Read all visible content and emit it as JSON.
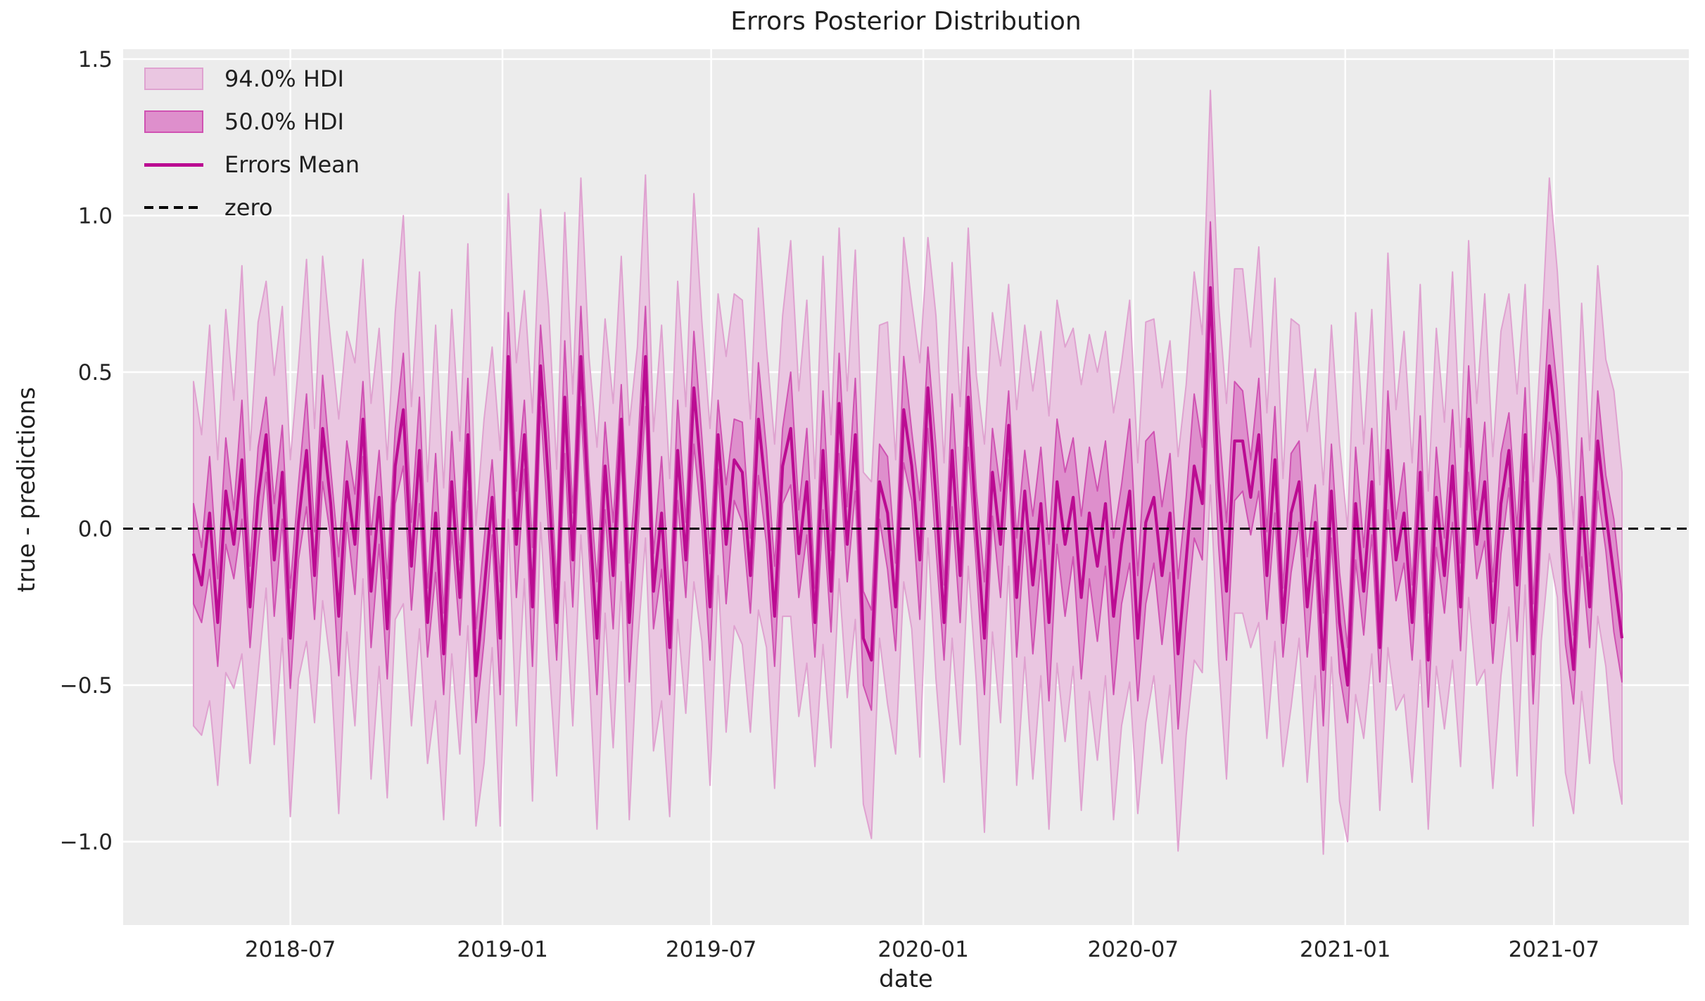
{
  "title": "Errors Posterior Distribution",
  "xlabel": "date",
  "ylabel": "true - predictions",
  "legend": {
    "items": [
      {
        "label": "94.0% HDI",
        "kind": "patch-light"
      },
      {
        "label": "50.0% HDI",
        "kind": "patch-dark"
      },
      {
        "label": "Errors Mean",
        "kind": "line"
      },
      {
        "label": "zero",
        "kind": "dashed-line"
      }
    ]
  },
  "colors": {
    "plot_bg": "#ececec",
    "grid": "#ffffff",
    "band94_fill": "#eac6e1",
    "band94_edge": "#dfa2d0",
    "band50_fill": "#de8fcc",
    "band50_edge": "#cf52b2",
    "mean": "#bb0c92",
    "zero": "#000000",
    "text": "#242424"
  },
  "chart_data": {
    "type": "line",
    "title": "Errors Posterior Distribution",
    "xlabel": "date",
    "ylabel": "true - predictions",
    "legend_position": "upper left",
    "grid": true,
    "x_start_date": "2018-04-08",
    "x_step_days": 7,
    "ylim": [
      -1.27,
      1.53
    ],
    "y_ticks": [
      {
        "value": -1.0,
        "label": "−1.0"
      },
      {
        "value": -0.5,
        "label": "−0.5"
      },
      {
        "value": 0.0,
        "label": "0.0"
      },
      {
        "value": 0.5,
        "label": "0.5"
      },
      {
        "value": 1.0,
        "label": "1.0"
      },
      {
        "value": 1.5,
        "label": "1.5"
      }
    ],
    "x_ticks": [
      {
        "date": "2018-07-01",
        "label": "2018-07"
      },
      {
        "date": "2019-01-01",
        "label": "2019-01"
      },
      {
        "date": "2019-07-01",
        "label": "2019-07"
      },
      {
        "date": "2020-01-01",
        "label": "2020-01"
      },
      {
        "date": "2020-07-01",
        "label": "2020-07"
      },
      {
        "date": "2021-01-01",
        "label": "2021-01"
      },
      {
        "date": "2021-07-01",
        "label": "2021-07"
      }
    ],
    "zero_line": 0.0,
    "mean": [
      -0.08,
      -0.18,
      0.05,
      -0.3,
      0.12,
      -0.05,
      0.22,
      -0.25,
      0.1,
      0.3,
      -0.1,
      0.18,
      -0.35,
      0.02,
      0.25,
      -0.15,
      0.32,
      0.08,
      -0.28,
      0.15,
      -0.05,
      0.35,
      -0.2,
      0.1,
      -0.32,
      0.2,
      0.38,
      -0.12,
      0.25,
      -0.3,
      0.05,
      -0.4,
      0.15,
      -0.22,
      0.3,
      -0.47,
      -0.2,
      0.1,
      -0.35,
      0.55,
      -0.05,
      0.3,
      -0.25,
      0.52,
      0.15,
      -0.3,
      0.42,
      -0.1,
      0.55,
      0.05,
      -0.35,
      0.2,
      -0.15,
      0.35,
      -0.3,
      0.1,
      0.55,
      -0.2,
      0.05,
      -0.38,
      0.25,
      -0.1,
      0.45,
      0.15,
      -0.25,
      0.3,
      -0.05,
      0.22,
      0.18,
      -0.15,
      0.35,
      0.1,
      -0.28,
      0.2,
      0.32,
      -0.08,
      0.15,
      -0.3,
      0.25,
      -0.2,
      0.4,
      -0.05,
      0.3,
      -0.35,
      -0.42,
      0.15,
      0.05,
      -0.25,
      0.38,
      0.2,
      -0.1,
      0.45,
      0.1,
      -0.3,
      0.25,
      -0.15,
      0.42,
      0.0,
      -0.35,
      0.18,
      -0.05,
      0.33,
      -0.22,
      0.12,
      -0.18,
      0.08,
      -0.3,
      0.15,
      -0.05,
      0.1,
      -0.22,
      0.05,
      -0.12,
      0.08,
      -0.28,
      -0.05,
      0.12,
      -0.35,
      0.02,
      0.1,
      -0.15,
      0.05,
      -0.4,
      -0.1,
      0.2,
      0.08,
      0.77,
      0.15,
      -0.2,
      0.28,
      0.28,
      0.1,
      0.3,
      -0.15,
      0.22,
      -0.3,
      0.05,
      0.15,
      -0.25,
      0.02,
      -0.45,
      0.12,
      -0.3,
      -0.5,
      0.08,
      -0.2,
      0.15,
      -0.38,
      0.25,
      -0.1,
      0.05,
      -0.3,
      0.18,
      -0.42,
      0.1,
      -0.15,
      0.2,
      -0.25,
      0.35,
      -0.05,
      0.15,
      -0.3,
      0.08,
      0.25,
      -0.18,
      0.3,
      -0.4,
      0.12,
      0.52,
      0.3,
      -0.2,
      -0.45,
      0.1,
      -0.25,
      0.28,
      0.05,
      -0.15,
      -0.35
    ],
    "hdi94_halfwidth": [
      0.55,
      0.48,
      0.6,
      0.52,
      0.58,
      0.46,
      0.62,
      0.5,
      0.56,
      0.49,
      0.59,
      0.53,
      0.57,
      0.5,
      0.61,
      0.47,
      0.55,
      0.52,
      0.63,
      0.48,
      0.58,
      0.51,
      0.6,
      0.54,
      0.54,
      0.49,
      0.62,
      0.51,
      0.57,
      0.45,
      0.6,
      0.53,
      0.55,
      0.5,
      0.61,
      0.48,
      0.55,
      0.48,
      0.6,
      0.52,
      0.58,
      0.46,
      0.62,
      0.5,
      0.56,
      0.49,
      0.59,
      0.53,
      0.57,
      0.5,
      0.61,
      0.47,
      0.55,
      0.52,
      0.63,
      0.48,
      0.58,
      0.51,
      0.6,
      0.54,
      0.54,
      0.49,
      0.62,
      0.51,
      0.57,
      0.45,
      0.6,
      0.53,
      0.55,
      0.5,
      0.61,
      0.48,
      0.55,
      0.48,
      0.6,
      0.52,
      0.58,
      0.46,
      0.62,
      0.5,
      0.56,
      0.49,
      0.59,
      0.53,
      0.57,
      0.5,
      0.61,
      0.47,
      0.55,
      0.52,
      0.63,
      0.48,
      0.58,
      0.51,
      0.6,
      0.54,
      0.54,
      0.49,
      0.62,
      0.51,
      0.57,
      0.45,
      0.6,
      0.53,
      0.62,
      0.55,
      0.66,
      0.58,
      0.63,
      0.54,
      0.68,
      0.57,
      0.62,
      0.55,
      0.65,
      0.58,
      0.61,
      0.56,
      0.64,
      0.57,
      0.6,
      0.55,
      0.63,
      0.56,
      0.62,
      0.54,
      0.63,
      0.57,
      0.6,
      0.55,
      0.55,
      0.48,
      0.6,
      0.52,
      0.58,
      0.46,
      0.62,
      0.5,
      0.56,
      0.49,
      0.59,
      0.53,
      0.57,
      0.5,
      0.61,
      0.47,
      0.55,
      0.52,
      0.63,
      0.48,
      0.58,
      0.51,
      0.6,
      0.54,
      0.54,
      0.49,
      0.62,
      0.51,
      0.57,
      0.45,
      0.6,
      0.53,
      0.55,
      0.5,
      0.61,
      0.48,
      0.55,
      0.48,
      0.6,
      0.52,
      0.58,
      0.46,
      0.62,
      0.5,
      0.56,
      0.49,
      0.59,
      0.53
    ],
    "hdi50_halfwidth": [
      0.16,
      0.12,
      0.18,
      0.14,
      0.17,
      0.11,
      0.19,
      0.13,
      0.16,
      0.12,
      0.18,
      0.15,
      0.16,
      0.12,
      0.18,
      0.14,
      0.17,
      0.11,
      0.19,
      0.13,
      0.16,
      0.12,
      0.18,
      0.15,
      0.16,
      0.12,
      0.18,
      0.14,
      0.17,
      0.11,
      0.19,
      0.13,
      0.16,
      0.12,
      0.18,
      0.15,
      0.16,
      0.12,
      0.18,
      0.14,
      0.17,
      0.11,
      0.19,
      0.13,
      0.16,
      0.12,
      0.18,
      0.15,
      0.16,
      0.12,
      0.18,
      0.14,
      0.17,
      0.11,
      0.19,
      0.13,
      0.16,
      0.12,
      0.18,
      0.15,
      0.16,
      0.12,
      0.18,
      0.14,
      0.17,
      0.11,
      0.19,
      0.13,
      0.16,
      0.12,
      0.18,
      0.15,
      0.16,
      0.12,
      0.18,
      0.14,
      0.17,
      0.11,
      0.19,
      0.13,
      0.16,
      0.12,
      0.18,
      0.15,
      0.16,
      0.12,
      0.18,
      0.14,
      0.17,
      0.11,
      0.19,
      0.13,
      0.16,
      0.12,
      0.18,
      0.15,
      0.16,
      0.12,
      0.18,
      0.14,
      0.17,
      0.11,
      0.19,
      0.13,
      0.22,
      0.18,
      0.25,
      0.2,
      0.23,
      0.19,
      0.26,
      0.21,
      0.24,
      0.2,
      0.25,
      0.19,
      0.23,
      0.2,
      0.26,
      0.21,
      0.22,
      0.19,
      0.24,
      0.2,
      0.23,
      0.18,
      0.21,
      0.2,
      0.22,
      0.19,
      0.16,
      0.12,
      0.18,
      0.14,
      0.17,
      0.11,
      0.19,
      0.13,
      0.16,
      0.12,
      0.18,
      0.15,
      0.16,
      0.12,
      0.18,
      0.14,
      0.17,
      0.11,
      0.19,
      0.13,
      0.16,
      0.12,
      0.18,
      0.15,
      0.16,
      0.12,
      0.18,
      0.14,
      0.17,
      0.11,
      0.19,
      0.13,
      0.16,
      0.12,
      0.18,
      0.15,
      0.16,
      0.12,
      0.18,
      0.14,
      0.17,
      0.11,
      0.19,
      0.13,
      0.16,
      0.12,
      0.18,
      0.14
    ]
  }
}
